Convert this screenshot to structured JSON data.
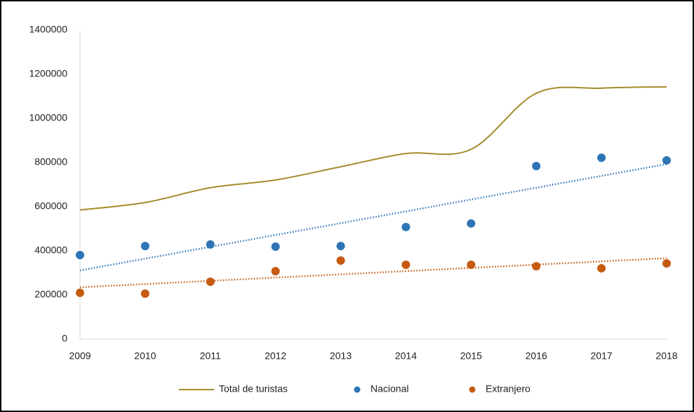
{
  "chart_data": {
    "type": "line_scatter",
    "x": [
      2009,
      2010,
      2011,
      2012,
      2013,
      2014,
      2015,
      2016,
      2017,
      2018
    ],
    "xlim": [
      2009,
      2018
    ],
    "xticks": [
      2009,
      2010,
      2011,
      2012,
      2013,
      2014,
      2015,
      2016,
      2017,
      2018
    ],
    "ylim": [
      0,
      1400000
    ],
    "yticks": [
      0,
      200000,
      400000,
      600000,
      800000,
      1000000,
      1200000,
      1400000
    ],
    "grid": false,
    "legend": "bottom",
    "series": [
      {
        "name": "Total de turistas",
        "color": "#a48b2c",
        "mark": "smooth-line",
        "values": [
          585000,
          619000,
          686000,
          721000,
          781000,
          841000,
          860000,
          1114000,
          1137000,
          1143000
        ]
      },
      {
        "name": "Nacional",
        "color": "#2e75b6",
        "mark": "dot",
        "trendline": "linear",
        "values": [
          381000,
          422000,
          429000,
          419000,
          422000,
          508000,
          524000,
          784000,
          822000,
          810000
        ]
      },
      {
        "name": "Extranjero",
        "color": "#c55a11",
        "mark": "dot",
        "trendline": "linear",
        "values": [
          210000,
          206000,
          260000,
          308000,
          356000,
          337000,
          337000,
          330000,
          321000,
          343000
        ]
      }
    ]
  }
}
